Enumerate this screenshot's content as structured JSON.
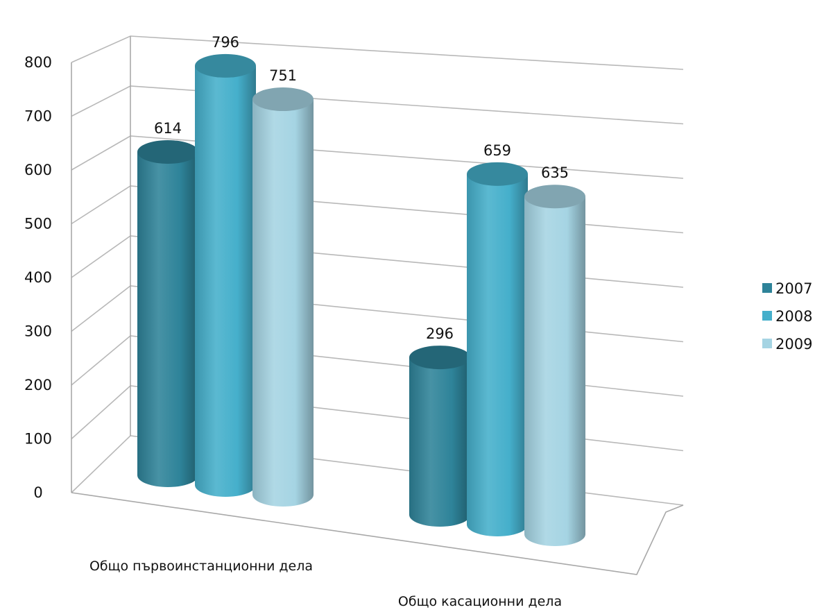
{
  "chart_data": {
    "type": "bar",
    "style": "3d-cylinder",
    "categories": [
      "Общо първоинстанционни дела",
      "Общо  касационни дела"
    ],
    "series": [
      {
        "name": "2007",
        "values": [
          614,
          296
        ],
        "color": "#2E8399"
      },
      {
        "name": "2008",
        "values": [
          796,
          659
        ],
        "color": "#45AFCB"
      },
      {
        "name": "2009",
        "values": [
          751,
          635
        ],
        "color": "#A5D4E3"
      }
    ],
    "y_ticks": [
      "0",
      "100",
      "200",
      "300",
      "400",
      "500",
      "600",
      "700",
      "800"
    ],
    "data_labels": [
      [
        "614",
        "296"
      ],
      [
        "796",
        "659"
      ],
      [
        "751",
        "635"
      ]
    ],
    "ylim": [
      0,
      800
    ],
    "grid": true,
    "legend_position": "right"
  }
}
